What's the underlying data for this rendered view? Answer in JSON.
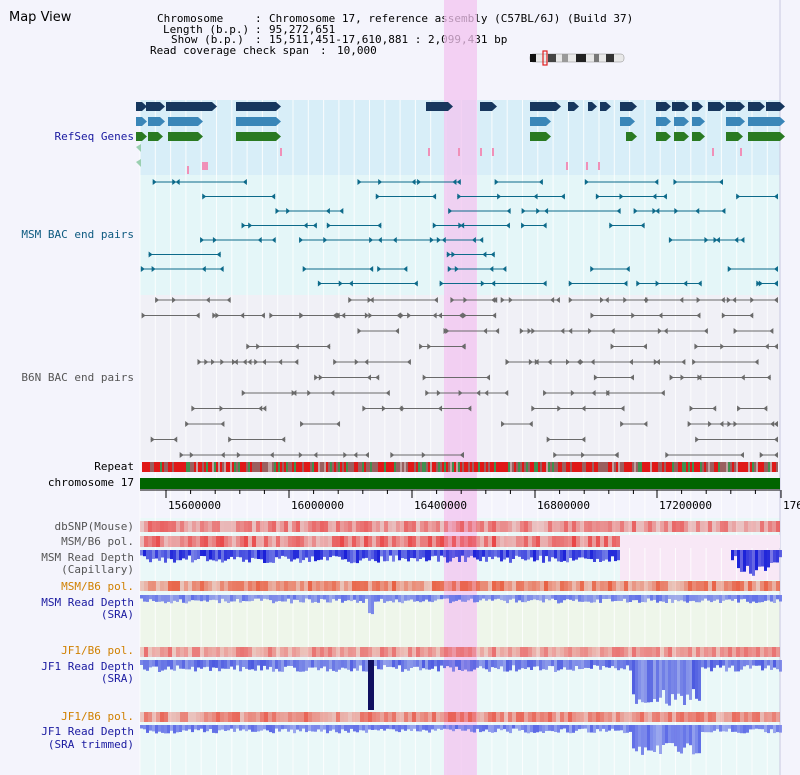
{
  "window": {
    "title": "Map View"
  },
  "header": {
    "chromosome_label": "Chromosome",
    "chromosome_value": "Chromosome 17, reference assembly (C57BL/6J) (Build 37)",
    "length_label": "Length (b.p.)",
    "length_value": "95,272,651",
    "show_label": "Show (b.p.)",
    "show_value": "15,511,451-17,610,881 : 2,099,431 bp",
    "span_label": "Read coverage check span",
    "span_value": "10,000"
  },
  "tracks": {
    "refseq": "RefSeq Genes",
    "msm_bac": "MSM BAC end pairs",
    "b6n_bac": "B6N BAC end pairs",
    "repeat": "Repeat",
    "chromosome": "chromosome 17",
    "dbsnp": "dbSNP(Mouse)",
    "msm_b6_pol_a": "MSM/B6 pol.",
    "msm_depth_cap_1": "MSM Read Depth",
    "msm_depth_cap_2": "(Capillary)",
    "msm_b6_pol_b": "MSM/B6 pol.",
    "msm_depth_sra_1": "MSM Read Depth",
    "msm_depth_sra_2": "(SRA)",
    "jf1_pol_a": "JF1/B6 pol.",
    "jf1_depth_1": "JF1 Read Depth",
    "jf1_depth_2": "(SRA)",
    "jf1_pol_b": "JF1/B6 pol.",
    "jf1_trim_1": "JF1 Read Depth",
    "jf1_trim_2": "(SRA trimmed)"
  },
  "axis": {
    "ticks": [
      "15600000",
      "16000000",
      "16400000",
      "16800000",
      "17200000",
      "176"
    ]
  },
  "colors": {
    "refseq_dark": "#17375e",
    "refseq_mid": "#3a86b8",
    "refseq_green": "#2a7a22",
    "msm_bac": "#0d6a8a",
    "b6n_bac": "#6a6a6a",
    "chrom_bar": "#006400",
    "highlight": "#f3c4f0",
    "depth_blue": "#2030d0",
    "pol_red": "#e85050"
  }
}
